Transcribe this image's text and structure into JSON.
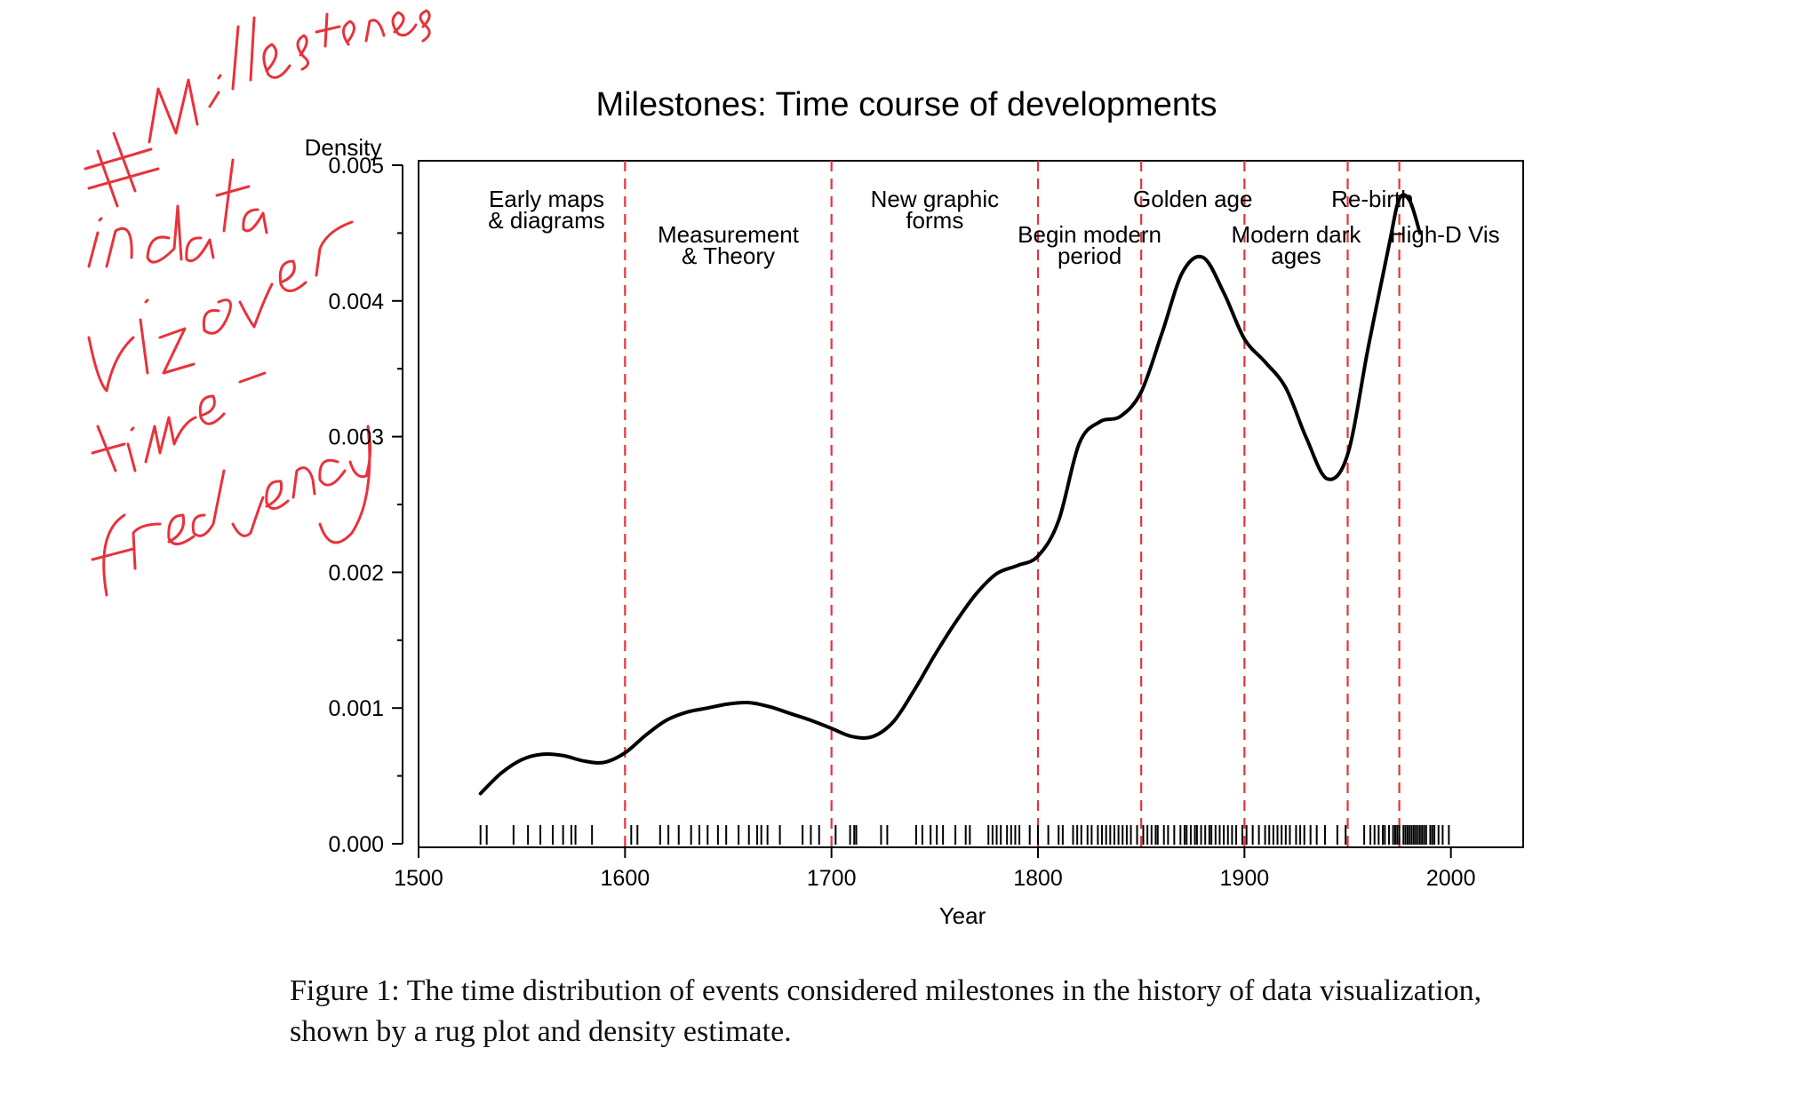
{
  "handwritten_note": {
    "lines": [
      "# Milestones",
      "in data",
      "viz over",
      "time -",
      "frequency"
    ],
    "color": "#e8323c"
  },
  "caption": {
    "text": "Figure 1: The time distribution of events considered milestones in the history of data visualization, shown by a rug plot and density estimate."
  },
  "chart_data": {
    "type": "line",
    "title": "Milestones: Time course of developments",
    "xlabel": "Year",
    "ylabel": "Density",
    "xlim": [
      1500,
      2035
    ],
    "ylim": [
      0,
      0.005
    ],
    "x_ticks": [
      1500,
      1600,
      1700,
      1800,
      1900,
      2000
    ],
    "x_tick_labels": [
      "1500",
      "1600",
      "1700",
      "1800",
      "1900",
      "2000"
    ],
    "y_ticks": [
      0,
      0.001,
      0.002,
      0.003,
      0.004,
      0.005
    ],
    "y_tick_labels": [
      "0.000",
      "0.001",
      "0.002",
      "0.003",
      "0.004",
      "0.005"
    ],
    "line_color": "#000000",
    "period_line_color": "#e8323c",
    "series": [
      {
        "x": [
          1530,
          1540,
          1550,
          1560,
          1570,
          1580,
          1590,
          1600,
          1610,
          1620,
          1630,
          1640,
          1650,
          1660,
          1670,
          1680,
          1690,
          1700,
          1710,
          1720,
          1730,
          1740,
          1750,
          1760,
          1770,
          1780,
          1790,
          1800,
          1810,
          1820,
          1830,
          1840,
          1850,
          1860,
          1870,
          1880,
          1890,
          1900,
          1910,
          1920,
          1930,
          1940,
          1950,
          1960,
          1970,
          1975,
          1980,
          1985
        ],
        "y": [
          0.00037,
          0.00052,
          0.00062,
          0.00066,
          0.00065,
          0.00061,
          0.0006,
          0.00067,
          0.0008,
          0.00091,
          0.00097,
          0.001,
          0.00103,
          0.00104,
          0.00101,
          0.00096,
          0.00091,
          0.00085,
          0.00079,
          0.00079,
          0.0009,
          0.00113,
          0.00139,
          0.00163,
          0.00184,
          0.00199,
          0.00205,
          0.00212,
          0.00238,
          0.00295,
          0.00311,
          0.00315,
          0.00333,
          0.00376,
          0.00421,
          0.00432,
          0.00406,
          0.00372,
          0.00355,
          0.00336,
          0.00299,
          0.00269,
          0.00287,
          0.00366,
          0.00441,
          0.00475,
          0.00474,
          0.0045
        ]
      }
    ],
    "periods": [
      {
        "label_lines": [
          "Early maps",
          "& diagrams"
        ],
        "label_x": 1562,
        "label_row": 1
      },
      {
        "label_lines": [
          "Measurement",
          "& Theory"
        ],
        "label_x": 1650,
        "label_row": 2
      },
      {
        "label_lines": [
          "New graphic",
          "forms"
        ],
        "label_x": 1750,
        "label_row": 1
      },
      {
        "label_lines": [
          "Begin modern",
          "period"
        ],
        "label_x": 1825,
        "label_row": 2
      },
      {
        "label_lines": [
          "Golden age"
        ],
        "label_x": 1875,
        "label_row": 1
      },
      {
        "label_lines": [
          "Modern dark",
          "ages"
        ],
        "label_x": 1925,
        "label_row": 2
      },
      {
        "label_lines": [
          "Re-birth"
        ],
        "label_x": 1962,
        "label_row": 1
      },
      {
        "label_lines": [
          "High-D Vis"
        ],
        "label_x": 1997,
        "label_row": 2
      }
    ],
    "period_boundaries": [
      1600,
      1700,
      1800,
      1850,
      1900,
      1950,
      1975
    ],
    "rug": [
      1530,
      1533,
      1546,
      1553,
      1559,
      1565,
      1570,
      1574,
      1576,
      1584,
      1603,
      1606,
      1617,
      1621,
      1626,
      1632,
      1636,
      1640,
      1645,
      1649,
      1655,
      1660,
      1664,
      1666,
      1669,
      1675,
      1686,
      1690,
      1694,
      1702,
      1709,
      1711,
      1712,
      1724,
      1727,
      1741,
      1744,
      1748,
      1751,
      1754,
      1760,
      1765,
      1767,
      1776,
      1778,
      1780,
      1782,
      1785,
      1787,
      1789,
      1791,
      1796,
      1800,
      1805,
      1810,
      1812,
      1817,
      1819,
      1821,
      1824,
      1826,
      1829,
      1831,
      1833,
      1835,
      1837,
      1839,
      1841,
      1843,
      1845,
      1848,
      1851,
      1853,
      1855,
      1857,
      1858,
      1861,
      1863,
      1866,
      1869,
      1871,
      1872,
      1874,
      1876,
      1877,
      1879,
      1881,
      1883,
      1884,
      1886,
      1888,
      1890,
      1892,
      1894,
      1896,
      1899,
      1901,
      1904,
      1907,
      1910,
      1912,
      1914,
      1916,
      1918,
      1920,
      1922,
      1925,
      1927,
      1929,
      1932,
      1935,
      1939,
      1945,
      1949,
      1958,
      1961,
      1963,
      1965,
      1967,
      1968,
      1970,
      1972,
      1973,
      1974,
      1975,
      1977,
      1978,
      1979,
      1980,
      1981,
      1982,
      1983,
      1984,
      1985,
      1986,
      1987,
      1988,
      1990,
      1991,
      1992,
      1994,
      1996,
      1999
    ]
  }
}
